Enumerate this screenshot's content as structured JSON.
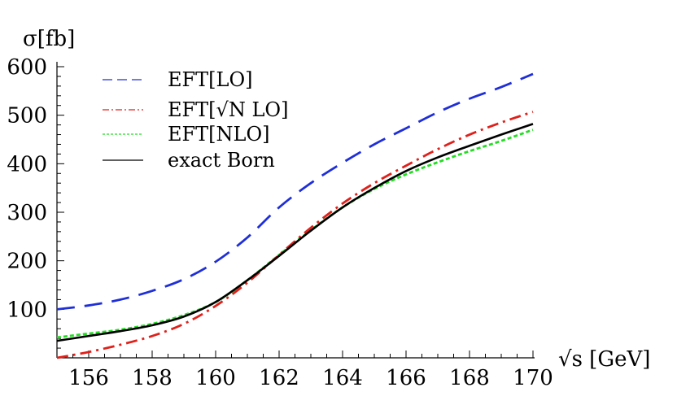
{
  "chart_data": {
    "type": "line",
    "title": "",
    "xlabel": "√s [GeV]",
    "ylabel": "σ[fb]",
    "xlim": [
      155,
      170
    ],
    "ylim": [
      0,
      600
    ],
    "x_ticks": [
      156,
      158,
      160,
      162,
      164,
      166,
      168,
      170
    ],
    "y_ticks": [
      100,
      200,
      300,
      400,
      500,
      600
    ],
    "grid": false,
    "legend_position": "top-left",
    "series": [
      {
        "name": "EFT[LO]",
        "color": "#1f2fd8",
        "style": "dashed",
        "x": [
          155,
          156,
          157,
          158,
          159,
          160,
          161,
          162,
          163,
          164,
          165,
          166,
          167,
          168,
          169,
          170
        ],
        "y": [
          100,
          108,
          120,
          138,
          162,
          198,
          248,
          310,
          360,
          402,
          440,
          473,
          506,
          534,
          558,
          585
        ]
      },
      {
        "name": "EFT[√N LO]",
        "color": "#e0201a",
        "style": "dashdot",
        "x": [
          155,
          156,
          157,
          158,
          159,
          160,
          161,
          162,
          163,
          164,
          165,
          166,
          167,
          168,
          169,
          170
        ],
        "y": [
          0,
          12,
          27,
          45,
          70,
          107,
          155,
          212,
          268,
          318,
          360,
          396,
          430,
          460,
          485,
          507
        ]
      },
      {
        "name": "EFT[NLO]",
        "color": "#22dd22",
        "style": "dotted",
        "x": [
          155,
          156,
          157,
          158,
          159,
          160,
          161,
          162,
          163,
          164,
          165,
          166,
          167,
          168,
          169,
          170
        ],
        "y": [
          42,
          50,
          58,
          70,
          88,
          115,
          160,
          212,
          263,
          310,
          348,
          378,
          403,
          426,
          447,
          470
        ]
      },
      {
        "name": "exact Born",
        "color": "#000000",
        "style": "solid",
        "x": [
          155,
          156,
          157,
          158,
          159,
          160,
          161,
          162,
          163,
          164,
          165,
          166,
          167,
          168,
          169,
          170
        ],
        "y": [
          35,
          45,
          55,
          67,
          85,
          115,
          160,
          210,
          262,
          310,
          350,
          385,
          413,
          437,
          460,
          482
        ]
      }
    ]
  }
}
